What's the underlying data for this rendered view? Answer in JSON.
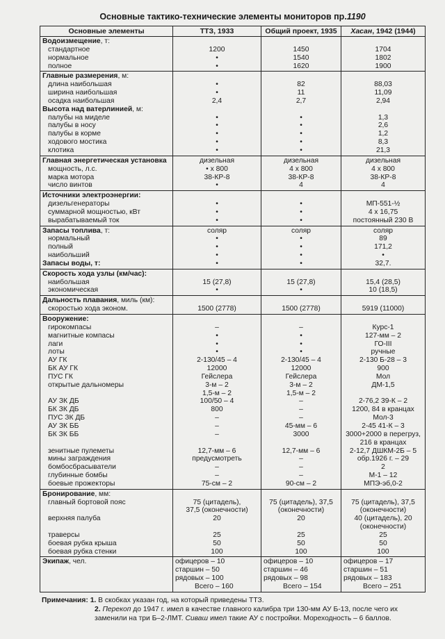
{
  "title": {
    "text": "Основные тактико-технические элементы мониторов пр.",
    "number": "1190"
  },
  "table": {
    "headers": [
      "Основные элементы",
      "ТТЗ, 1933",
      "Общий проект, 1935",
      {
        "italic": "Хасан",
        "text": ", 1942 (1944)"
      }
    ],
    "sections": [
      {
        "labels": [
          {
            "bold": "Водоизмещение",
            "text": ", т:"
          },
          "стандартное",
          "нормальное",
          "полное"
        ],
        "cols": [
          [
            "",
            "1200",
            "•",
            "•"
          ],
          [
            "",
            "1450",
            "1540",
            "1620"
          ],
          [
            "",
            "1704",
            "1802",
            "1900"
          ]
        ]
      },
      {
        "labels": [
          {
            "bold": "Главные размерения",
            "text": ", м:"
          },
          "длина наибольшая",
          "ширина наибольшая",
          "осадка наибольшая",
          {
            "bold": "Высота над ватерлинией",
            "text": ", м:"
          },
          "палубы на миделе",
          "палубы в носу",
          "палубы в корме",
          "ходового мостика",
          "клотика"
        ],
        "cols": [
          [
            "",
            "•",
            "•",
            "2,4",
            "",
            "•",
            "•",
            "•",
            "•",
            "•"
          ],
          [
            "",
            "82",
            "11",
            "2,7",
            "",
            "•",
            "•",
            "•",
            "•",
            "•"
          ],
          [
            "",
            "88,03",
            "11,09",
            "2,94",
            "",
            "1,3",
            "2,6",
            "1,2",
            "8,3",
            "21,3"
          ]
        ]
      },
      {
        "labels": [
          {
            "bold": "Главная энергетическая установка",
            "text": ""
          },
          "мощность, л.с.",
          "марка мотора",
          "число винтов"
        ],
        "cols": [
          [
            "дизельная",
            "• x 800",
            "38-КР-8",
            "•"
          ],
          [
            "дизельная",
            "4 x 800",
            "38-КР-8",
            "4"
          ],
          [
            "дизельная",
            "4 x 800",
            "38-КР-8",
            "4"
          ]
        ]
      },
      {
        "labels": [
          {
            "bold": "Источники электроэнергии:",
            "text": ""
          },
          "дизельгенераторы",
          "суммарной мощностью, кВт",
          "вырабатываемый ток"
        ],
        "cols": [
          [
            "",
            "•",
            "•",
            "•"
          ],
          [
            "",
            "•",
            "•",
            "•"
          ],
          [
            "",
            "МП-551-½",
            "4 х 16,75",
            "постоянный 230 В"
          ]
        ]
      },
      {
        "labels": [
          {
            "bold": "Запасы топлива",
            "text": ", т:"
          },
          "нормальный",
          "полный",
          "наибольший",
          {
            "bold": "Запасы воды, т:",
            "text": ""
          }
        ],
        "cols": [
          [
            "соляр",
            "•",
            "•",
            "•",
            "•"
          ],
          [
            "соляр",
            "•",
            "•",
            "•",
            "•"
          ],
          [
            "соляр",
            "89",
            "171,2",
            "•",
            "32,7."
          ]
        ]
      },
      {
        "labels": [
          {
            "bold": "Скорость хода узлы (км/час):",
            "text": ""
          },
          "наибольшая",
          "экономическая"
        ],
        "cols": [
          [
            "",
            "15 (27,8)",
            "•"
          ],
          [
            "",
            "15 (27,8)",
            "•"
          ],
          [
            "",
            "15,4 (28,5)",
            "10 (18,5)"
          ]
        ]
      },
      {
        "labels": [
          {
            "bold": "Дальность плавания",
            "text": ", миль (км):"
          },
          "скоростью хода эконом."
        ],
        "cols": [
          [
            "",
            "1500 (2778)"
          ],
          [
            "",
            "1500 (2778)"
          ],
          [
            "",
            "5919 (11000)"
          ]
        ]
      },
      {
        "labels": [
          {
            "bold": "Вооружение:",
            "text": ""
          },
          "гирокомпасы",
          "магнитные компасы",
          "лаги",
          "лоты",
          "АУ ГК",
          "БК АУ ГК",
          "ПУС ГК",
          "открытые дальномеры",
          "",
          "АУ ЗК ДБ",
          "БК ЗК ДБ",
          "ПУС ЗК ДБ",
          "АУ ЗК ББ",
          "БК ЗК ББ",
          "",
          "зенитные пулеметы",
          "мины заграждения",
          "бомбосбрасыватели",
          "глубинные бомбы",
          "боевые прожекторы"
        ],
        "cols": [
          [
            "",
            "–",
            "•",
            "•",
            "•",
            "2-130/45 – 4",
            "12000",
            "Гейслера",
            "3-м – 2",
            "1,5-м – 2",
            "100/50 – 4",
            "800",
            "–",
            "–",
            "–",
            "",
            "12,7-мм – 6",
            "предусмотреть",
            "–",
            "–",
            "75-см – 2"
          ],
          [
            "",
            "–",
            "•",
            "•",
            "•",
            "2-130/45 – 4",
            "12000",
            "Гейслера",
            "3-м – 2",
            "1,5-м – 2",
            "–",
            "–",
            "–",
            "45-мм – 6",
            "3000",
            "",
            "12,7-мм – 6",
            "–",
            "–",
            "–",
            "90-см – 2"
          ],
          [
            "",
            "Курс-1",
            "127-мм – 2",
            "ГО-III",
            "ручные",
            "2-130 Б-28 – 3",
            "900",
            "Мол",
            "ДМ-1,5",
            "",
            "2-76,2 39-К – 2",
            "1200, 84 в кранцах",
            "Мол-3",
            "2-45 41-К – 3",
            "3000+2000 в перегруз,",
            "216 в кранцах",
            "2-12,7 ДШКМ-2Б – 5",
            "обр.1926 г. – 29",
            "2",
            "М-1 – 12",
            "МПЭ-эб,0-2"
          ]
        ]
      },
      {
        "labels": [
          {
            "bold": "Бронирование",
            "text": ", мм:"
          },
          "главный бортовой пояс",
          "",
          "верхняя палуба",
          "",
          "траверсы",
          "боевая рубка крыша",
          "боевая рубка стенки"
        ],
        "cols": [
          [
            "",
            "75 (цитадель),",
            "37,5 (оконечности)",
            "20",
            "",
            "25",
            "50",
            "100"
          ],
          [
            "",
            "75 (цитадель), 37,5",
            "(оконечности)",
            "20",
            "",
            "25",
            "50",
            "100"
          ],
          [
            "",
            "75 (цитадель), 37,5",
            "(оконечности)",
            "40 (цитадель), 20",
            "(оконечности)",
            "25",
            "50",
            "100"
          ]
        ]
      },
      {
        "labels": [
          {
            "bold": "Экипаж",
            "text": ", чел."
          },
          "",
          "",
          ""
        ],
        "crew": true,
        "cols": [
          [
            "офицеров – 10",
            "старшин – 50",
            "рядовых – 100",
            "Всего – 160"
          ],
          [
            "офицеров – 10",
            "старшин – 46",
            "рядовых – 98",
            "Всего – 154"
          ],
          [
            "офицеров – 17",
            "старшин – 51",
            "рядовых – 183",
            "Всего – 251"
          ]
        ]
      }
    ]
  },
  "notes": {
    "label": "Примечания:",
    "n1_num": "1.",
    "n1_text": " В скобках указан год, на который приведены ТТЗ.",
    "n2_num": "2.",
    "n2_ship1": "Перекоп",
    "n2_text1": " до 1947 г. имел в качестве главного калибра три 130-мм АУ Б-13, после чего их заменили на три Б–2-ЛМТ. ",
    "n2_ship2": "Сиваш",
    "n2_text2": " имел такие АУ с постройки. Мореходность – 6 баллов."
  }
}
